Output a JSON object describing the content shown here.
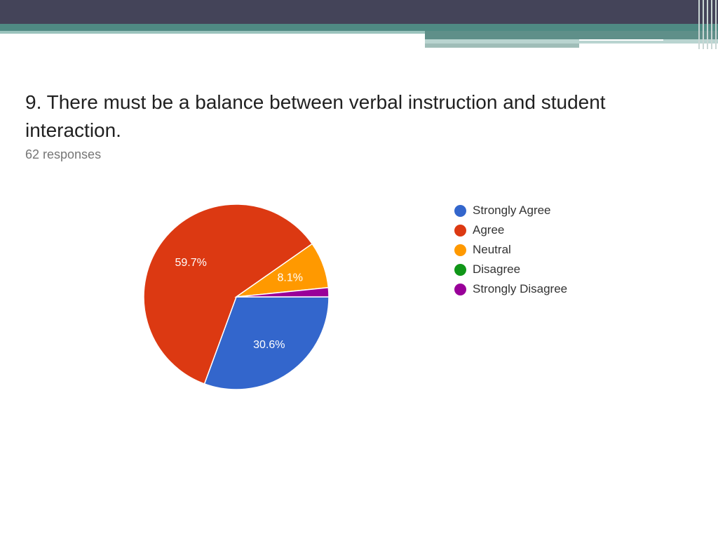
{
  "question": {
    "title": "9. There must be a balance between verbal instruction and student interaction.",
    "responses": "62 responses"
  },
  "chart_data": {
    "type": "pie",
    "categories": [
      "Strongly Agree",
      "Agree",
      "Neutral",
      "Disagree",
      "Strongly Disagree"
    ],
    "values": [
      30.6,
      59.7,
      8.1,
      0,
      1.6
    ],
    "data_labels": [
      "30.6%",
      "59.7%",
      "8.1%",
      "",
      ""
    ],
    "colors": [
      "#3366cc",
      "#dc3912",
      "#ff9900",
      "#109618",
      "#990099"
    ],
    "start_angle_deg": 90,
    "direction": "clockwise",
    "legend_position": "right"
  },
  "legend": {
    "items": [
      {
        "label": "Strongly Agree",
        "color": "#3366cc"
      },
      {
        "label": "Agree",
        "color": "#dc3912"
      },
      {
        "label": "Neutral",
        "color": "#ff9900"
      },
      {
        "label": "Disagree",
        "color": "#109618"
      },
      {
        "label": "Strongly Disagree",
        "color": "#990099"
      }
    ]
  }
}
